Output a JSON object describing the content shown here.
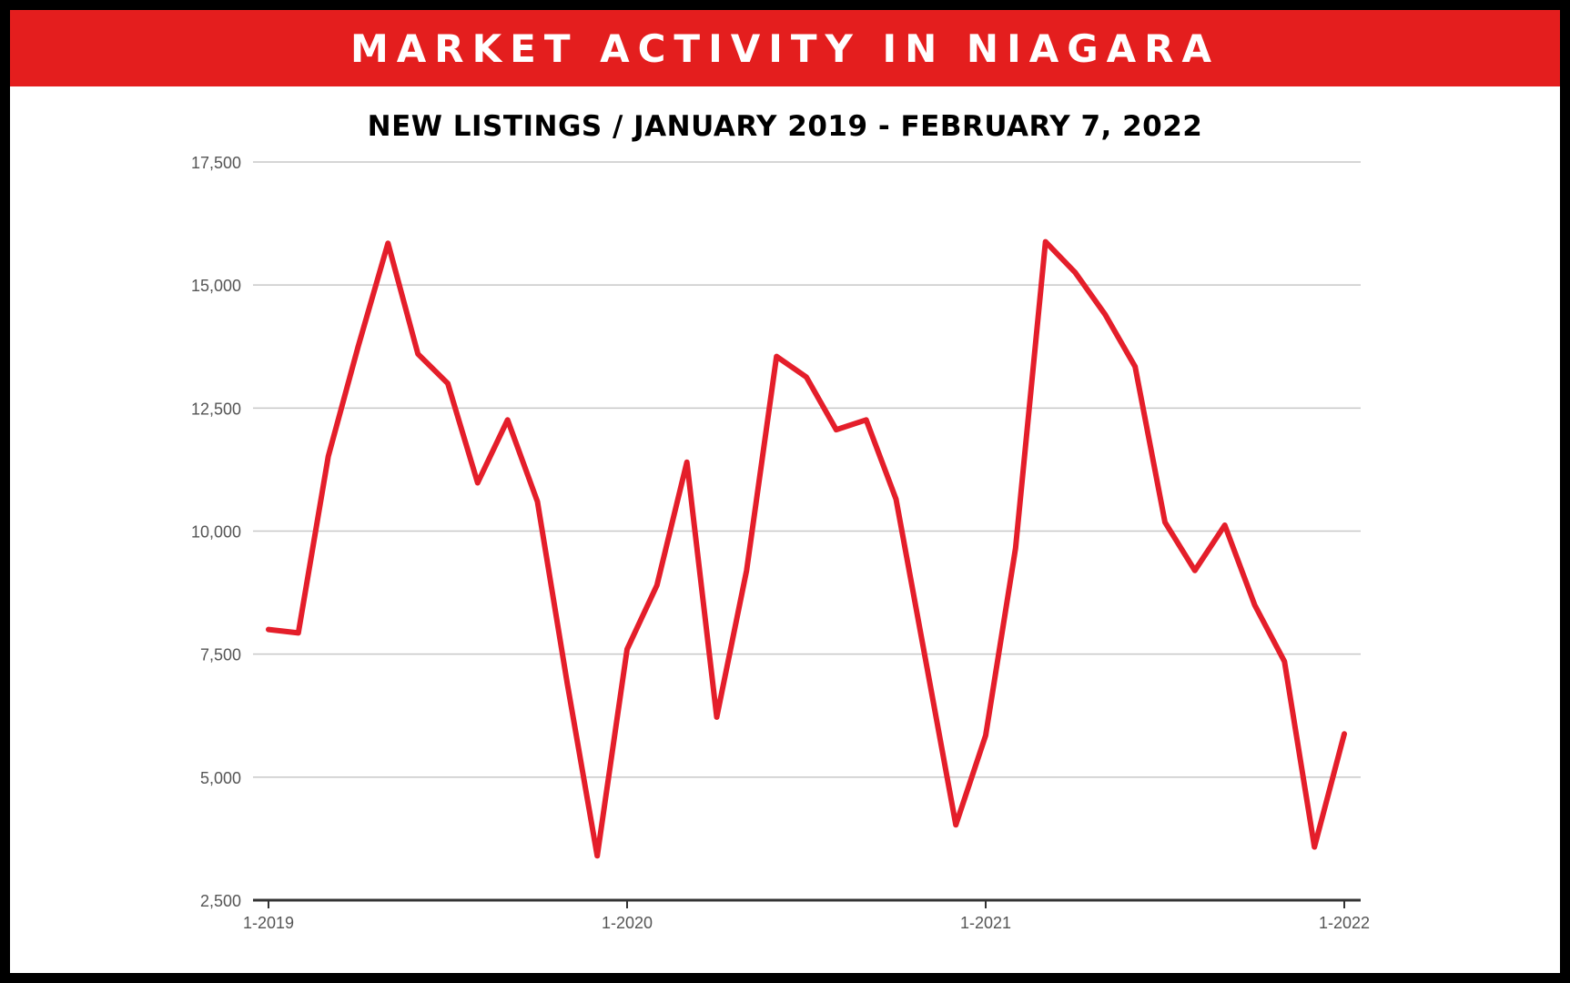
{
  "header": {
    "title": "MARKET ACTIVITY IN NIAGARA",
    "subtitle": "NEW LISTINGS / JANUARY 2019 - FEBRUARY 7, 2022"
  },
  "colors": {
    "banner": "#e41e1e",
    "line": "#e41e2a",
    "grid": "#c8c8c8",
    "axis": "#333333"
  },
  "chart_data": {
    "type": "line",
    "title": "NEW LISTINGS / JANUARY 2019 - FEBRUARY 7, 2022",
    "xlabel": "",
    "ylabel": "",
    "ylim": [
      2500,
      17500
    ],
    "yticks": [
      2500,
      5000,
      7500,
      10000,
      12500,
      15000,
      17500
    ],
    "ytick_labels": [
      "2,500",
      "5,000",
      "7,500",
      "10,000",
      "12,500",
      "15,000",
      "17,500"
    ],
    "xticks": [
      {
        "index": 0,
        "label": "1-2019"
      },
      {
        "index": 12,
        "label": "1-2020"
      },
      {
        "index": 24,
        "label": "1-2021"
      },
      {
        "index": 36,
        "label": "1-2022"
      }
    ],
    "grid": true,
    "x": [
      "1-2019",
      "2-2019",
      "3-2019",
      "4-2019",
      "5-2019",
      "6-2019",
      "7-2019",
      "8-2019",
      "9-2019",
      "10-2019",
      "11-2019",
      "12-2019",
      "1-2020",
      "2-2020",
      "3-2020",
      "4-2020",
      "5-2020",
      "6-2020",
      "7-2020",
      "8-2020",
      "9-2020",
      "10-2020",
      "11-2020",
      "12-2020",
      "1-2021",
      "2-2021",
      "3-2021",
      "4-2021",
      "5-2021",
      "6-2021",
      "7-2021",
      "8-2021",
      "9-2021",
      "10-2021",
      "11-2021",
      "12-2021",
      "1-2022"
    ],
    "series": [
      {
        "values": [
          8000,
          7930,
          11520,
          13750,
          15850,
          13600,
          13000,
          10980,
          12260,
          10600,
          6900,
          3400,
          7600,
          8900,
          11400,
          6220,
          9200,
          13550,
          13130,
          12060,
          12260,
          10650,
          7350,
          4030,
          5850,
          9650,
          15880,
          15250,
          14400,
          13340,
          10180,
          9200,
          10120,
          8500,
          7350,
          3580,
          5880
        ]
      }
    ]
  }
}
